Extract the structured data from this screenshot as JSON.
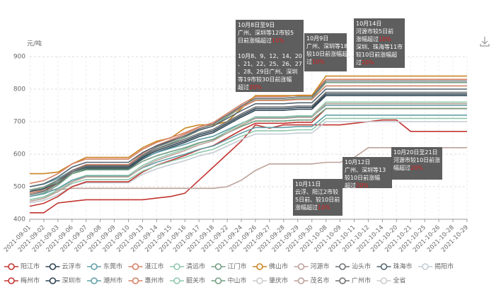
{
  "chart_data": {
    "type": "line",
    "y_label": "元/吨",
    "categories": [
      "2021-09-01",
      "2021-09-02",
      "2021-09-03",
      "2021-09-06",
      "2021-09-07",
      "2021-09-08",
      "2021-09-09",
      "2021-09-10",
      "2021-09-13",
      "2021-09-14",
      "2021-09-15",
      "2021-09-16",
      "2021-09-17",
      "2021-09-18",
      "2021-09-22",
      "2021-09-24",
      "2021-09-26",
      "2021-09-27",
      "2021-09-28",
      "2021-09-29",
      "2021-09-30",
      "2021-10-08",
      "2021-10-09",
      "2021-10-11",
      "2021-10-12",
      "2021-10-14",
      "2021-10-20",
      "2021-10-21",
      "2021-10-25",
      "2021-10-26",
      "2021-10-28",
      "2021-10-29"
    ],
    "ylim": [
      400,
      900
    ],
    "yticks": [
      400,
      500,
      600,
      700,
      800,
      900
    ],
    "grid": true,
    "series": [
      {
        "name": "阳江市",
        "color": "#c23531",
        "values": [
          420,
          420,
          450,
          455,
          460,
          460,
          460,
          460,
          460,
          465,
          470,
          480,
          520,
          560,
          600,
          640,
          690,
          680,
          690,
          690,
          690,
          690,
          690,
          695,
          700,
          705,
          705,
          670,
          670,
          670,
          670,
          670
        ]
      },
      {
        "name": "云浮市",
        "color": "#2f4554",
        "values": [
          480,
          489,
          510,
          540,
          555,
          555,
          555,
          555,
          585,
          606,
          621,
          636,
          654,
          666,
          690,
          714,
          735,
          735,
          735,
          738,
          738,
          780,
          780,
          780,
          780,
          780,
          780,
          780,
          780,
          780,
          780,
          780
        ]
      },
      {
        "name": "东莞市",
        "color": "#61a0a8",
        "values": [
          500,
          508,
          525,
          550,
          562,
          562,
          562,
          562,
          588,
          605,
          618,
          630,
          645,
          655,
          675,
          695,
          712,
          712,
          712,
          715,
          715,
          750,
          750,
          750,
          750,
          750,
          750,
          750,
          750,
          750,
          750,
          750
        ]
      },
      {
        "name": "湛江市",
        "color": "#d48265",
        "values": [
          480,
          490,
          515,
          550,
          568,
          568,
          568,
          568,
          602,
          627,
          644,
          662,
          683,
          697,
          725,
          753,
          777,
          777,
          777,
          781,
          781,
          830,
          830,
          830,
          830,
          830,
          830,
          830,
          830,
          830,
          830,
          830
        ]
      },
      {
        "name": "清远市",
        "color": "#91c7ae",
        "values": [
          460,
          469,
          490,
          520,
          535,
          535,
          535,
          535,
          565,
          586,
          601,
          616,
          634,
          646,
          670,
          694,
          715,
          715,
          715,
          718,
          718,
          760,
          760,
          760,
          760,
          760,
          760,
          760,
          760,
          760,
          760,
          760
        ]
      },
      {
        "name": "江门市",
        "color": "#749f83",
        "values": [
          470,
          480,
          505,
          540,
          558,
          558,
          558,
          558,
          592,
          617,
          634,
          652,
          673,
          687,
          715,
          743,
          767,
          767,
          767,
          771,
          771,
          820,
          820,
          820,
          820,
          820,
          820,
          820,
          820,
          820,
          820,
          820
        ]
      },
      {
        "name": "佛山市",
        "color": "#ca8622",
        "values": [
          540,
          540,
          545,
          570,
          590,
          590,
          590,
          590,
          620,
          640,
          650,
          680,
          690,
          690,
          700,
          740,
          780,
          780,
          780,
          780,
          780,
          840,
          840,
          840,
          840,
          840,
          840,
          840,
          840,
          840,
          840,
          840
        ]
      },
      {
        "name": "河源市",
        "color": "#bda29a",
        "values": [
          490,
          490,
          490,
          495,
          495,
          495,
          495,
          495,
          495,
          495,
          495,
          495,
          495,
          495,
          500,
          520,
          550,
          570,
          570,
          570,
          570,
          575,
          575,
          590,
          620,
          620,
          620,
          620,
          620,
          620,
          620,
          620
        ]
      },
      {
        "name": "汕头市",
        "color": "#6e7074",
        "values": [
          490,
          499,
          520,
          550,
          565,
          565,
          565,
          565,
          595,
          616,
          631,
          646,
          664,
          676,
          700,
          724,
          745,
          745,
          745,
          748,
          748,
          790,
          790,
          790,
          790,
          790,
          790,
          790,
          790,
          790,
          790,
          790
        ]
      },
      {
        "name": "珠海市",
        "color": "#546570",
        "values": [
          500,
          509,
          530,
          560,
          575,
          575,
          575,
          575,
          605,
          626,
          641,
          656,
          674,
          686,
          710,
          734,
          755,
          755,
          755,
          758,
          758,
          800,
          800,
          800,
          800,
          800,
          800,
          800,
          800,
          800,
          800,
          800
        ]
      },
      {
        "name": "揭阳市",
        "color": "#c4ccd3",
        "values": [
          450,
          458,
          475,
          500,
          512,
          512,
          512,
          512,
          538,
          555,
          568,
          580,
          595,
          605,
          625,
          645,
          662,
          662,
          662,
          665,
          665,
          700,
          700,
          700,
          700,
          700,
          700,
          700,
          700,
          700,
          700,
          700
        ]
      },
      {
        "name": "梅州市",
        "color": "#c23531",
        "values": [
          440,
          449,
          470,
          500,
          515,
          515,
          515,
          515,
          545,
          566,
          581,
          596,
          614,
          626,
          650,
          674,
          695,
          695,
          695,
          698,
          698,
          740,
          740,
          740,
          740,
          740,
          740,
          740,
          740,
          740,
          740,
          740
        ]
      },
      {
        "name": "深圳市",
        "color": "#2f4554",
        "values": [
          485,
          494,
          515,
          545,
          560,
          560,
          560,
          560,
          590,
          611,
          626,
          641,
          659,
          671,
          695,
          719,
          740,
          740,
          740,
          743,
          743,
          785,
          785,
          785,
          785,
          785,
          785,
          785,
          785,
          785,
          785,
          785
        ]
      },
      {
        "name": "潮州市",
        "color": "#61a0a8",
        "values": [
          470,
          478,
          495,
          520,
          532,
          532,
          532,
          532,
          558,
          575,
          588,
          600,
          615,
          625,
          645,
          665,
          682,
          682,
          682,
          685,
          685,
          720,
          720,
          720,
          720,
          720,
          720,
          720,
          720,
          720,
          720,
          720
        ]
      },
      {
        "name": "惠州市",
        "color": "#d48265",
        "values": [
          510,
          519,
          540,
          570,
          585,
          585,
          585,
          585,
          615,
          636,
          651,
          666,
          684,
          696,
          720,
          744,
          765,
          765,
          765,
          768,
          768,
          810,
          810,
          810,
          810,
          810,
          810,
          810,
          810,
          810,
          810,
          810
        ]
      },
      {
        "name": "韶关市",
        "color": "#91c7ae",
        "values": [
          460,
          468,
          485,
          510,
          522,
          522,
          522,
          522,
          548,
          565,
          578,
          590,
          605,
          615,
          635,
          655,
          672,
          672,
          672,
          675,
          675,
          710,
          710,
          710,
          710,
          710,
          710,
          710,
          710,
          710,
          710,
          710
        ]
      },
      {
        "name": "中山市",
        "color": "#749f83",
        "values": [
          490,
          498,
          515,
          540,
          552,
          552,
          552,
          552,
          578,
          595,
          608,
          620,
          635,
          645,
          665,
          685,
          702,
          702,
          702,
          705,
          705,
          740,
          740,
          740,
          740,
          740,
          740,
          740,
          740,
          740,
          740,
          740
        ]
      },
      {
        "name": "肇庆市",
        "visible": false
      },
      {
        "name": "茂名市",
        "color": "#bda29a",
        "values": [
          455,
          464,
          485,
          515,
          530,
          530,
          530,
          530,
          560,
          581,
          596,
          611,
          629,
          641,
          665,
          689,
          710,
          710,
          710,
          713,
          713,
          755,
          755,
          755,
          755,
          755,
          755,
          755,
          755,
          755,
          755,
          755
        ]
      },
      {
        "name": "广州市",
        "color": "#6e7074",
        "values": [
          475,
          485,
          510,
          545,
          563,
          563,
          563,
          563,
          597,
          622,
          639,
          657,
          678,
          692,
          720,
          748,
          772,
          772,
          772,
          776,
          776,
          825,
          825,
          825,
          825,
          825,
          825,
          825,
          825,
          825,
          825,
          825
        ]
      },
      {
        "name": "全省",
        "visible": false
      }
    ],
    "annotations": [
      {
        "lines": [
          [
            {
              "text": "10月8日至9日"
            }
          ],
          [
            {
              "text": "广州、深圳等12市较5"
            }
          ],
          [
            {
              "text": "日前涨幅超过"
            },
            {
              "text": "10%",
              "color": "#e02020"
            }
          ],
          [],
          [
            {
              "text": "10月8、9、12、14、20"
            }
          ],
          [
            {
              "text": "、21、22、25、26、27"
            }
          ],
          [
            {
              "text": "、28、29日广州、深圳"
            }
          ],
          [
            {
              "text": "等19市较30日前涨幅"
            }
          ],
          [
            {
              "text": "超过"
            },
            {
              "text": "20%",
              "color": "#e02020"
            }
          ]
        ]
      },
      {
        "lines": [
          [
            {
              "text": "10月9日"
            }
          ],
          [
            {
              "text": "广州、深圳等18市"
            }
          ],
          [
            {
              "text": "较10日前涨幅超"
            }
          ],
          [
            {
              "text": "过"
            },
            {
              "text": "10%",
              "color": "#e02020"
            }
          ]
        ]
      },
      {
        "lines": [
          [
            {
              "text": "10月14日"
            }
          ],
          [
            {
              "text": "河源市较5日前"
            }
          ],
          [
            {
              "text": "涨幅超过"
            },
            {
              "text": "10%",
              "color": "#e02020"
            }
          ],
          [
            {
              "text": "深圳、珠海等11市"
            }
          ],
          [
            {
              "text": "较10日前涨幅超"
            }
          ],
          [
            {
              "text": "过"
            },
            {
              "text": "20%",
              "color": "#e02020"
            }
          ]
        ]
      },
      {
        "lines": [
          [
            {
              "text": "10月12日"
            }
          ],
          [
            {
              "text": "广州、深圳等13"
            }
          ],
          [
            {
              "text": "较10日前涨幅"
            }
          ],
          [
            {
              "text": "超过"
            },
            {
              "text": "20%",
              "color": "#e02020"
            }
          ]
        ]
      },
      {
        "lines": [
          [
            {
              "text": "10月11日"
            }
          ],
          [
            {
              "text": "云浮、阳江2市较"
            }
          ],
          [
            {
              "text": "5日前、较10日前"
            }
          ],
          [
            {
              "text": "涨幅超过"
            },
            {
              "text": "10%",
              "color": "#e02020"
            }
          ]
        ]
      },
      {
        "lines": [
          [
            {
              "text": "10月20日至21日"
            }
          ],
          [
            {
              "text": "河源市较10日前涨"
            }
          ],
          [
            {
              "text": "幅超过"
            },
            {
              "text": "20%",
              "color": "#e02020"
            }
          ]
        ]
      }
    ]
  }
}
